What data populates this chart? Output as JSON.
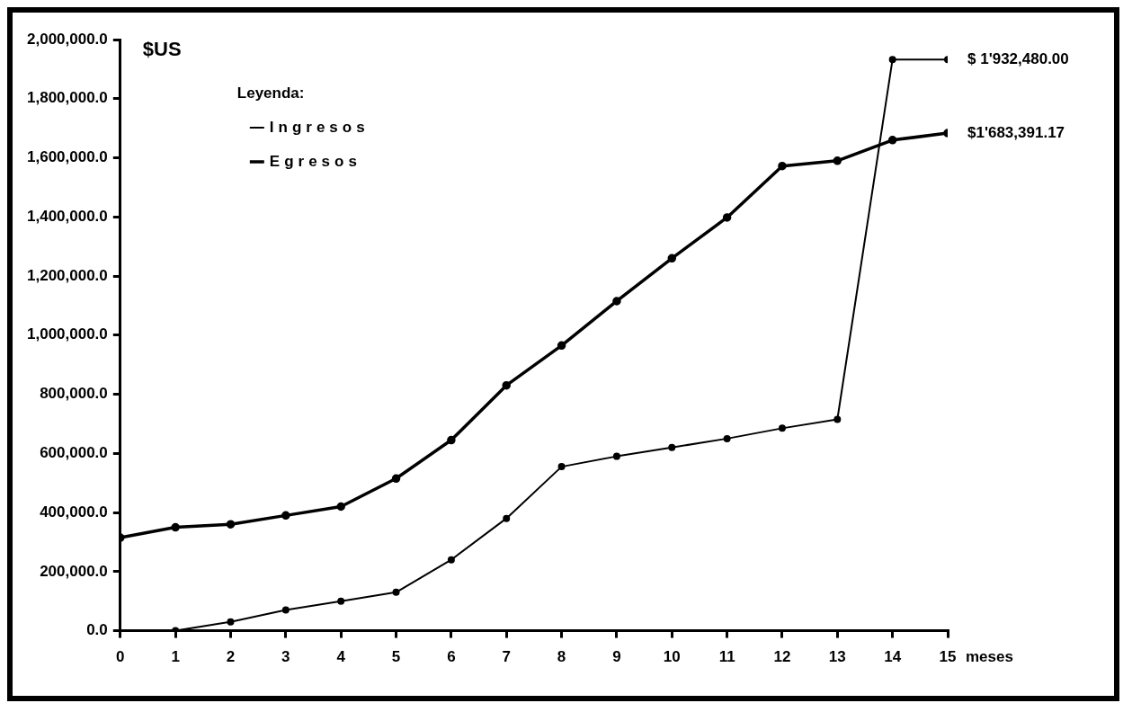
{
  "chart_data": {
    "type": "line",
    "ylabel": "$US",
    "xlabel": "meses",
    "legend_title": "Leyenda:",
    "legend": "top left",
    "marker": "circle",
    "grid": false,
    "x": [
      0,
      1,
      2,
      3,
      4,
      5,
      6,
      7,
      8,
      9,
      10,
      11,
      12,
      13,
      14,
      15
    ],
    "series": [
      {
        "name": "Ingresos",
        "color": "#000000",
        "values": [
          null,
          0,
          30000,
          70000,
          100000,
          130000,
          240000,
          380000,
          555000,
          590000,
          620000,
          650000,
          685000,
          715000,
          1932480,
          1932480
        ]
      },
      {
        "name": "Egresos",
        "color": "#000000",
        "values": [
          315000,
          350000,
          360000,
          390000,
          420000,
          515000,
          645000,
          830000,
          965000,
          1115000,
          1260000,
          1398000,
          1572000,
          1590000,
          1660000,
          1683391.17
        ]
      }
    ],
    "xlim": [
      0,
      15
    ],
    "xticks": [
      0,
      1,
      2,
      3,
      4,
      5,
      6,
      7,
      8,
      9,
      10,
      11,
      12,
      13,
      14,
      15
    ],
    "ylim": [
      0,
      2000000
    ],
    "yticks": [
      {
        "value": 0,
        "label": "0.0"
      },
      {
        "value": 200000,
        "label": "200,000.0"
      },
      {
        "value": 400000,
        "label": "400,000.0"
      },
      {
        "value": 600000,
        "label": "600,000.0"
      },
      {
        "value": 800000,
        "label": "800,000.0"
      },
      {
        "value": 1000000,
        "label": "1,000,000.0"
      },
      {
        "value": 1200000,
        "label": "1,200,000.0"
      },
      {
        "value": 1400000,
        "label": "1,400,000.0"
      },
      {
        "value": 1600000,
        "label": "1,600,000.0"
      },
      {
        "value": 1800000,
        "label": "1,800,000.0"
      },
      {
        "value": 2000000,
        "label": "2,000,000.0"
      }
    ],
    "annotations": [
      {
        "text": "$ 1'932,480.00",
        "x": 15,
        "y": 1932480
      },
      {
        "text": "$1'683,391.17",
        "x": 15,
        "y": 1683391.17
      }
    ]
  }
}
